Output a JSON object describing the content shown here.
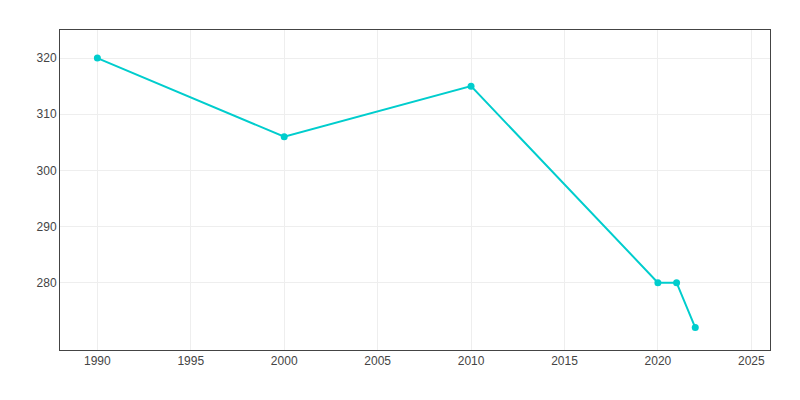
{
  "chart_data": {
    "type": "line",
    "x": [
      1990,
      2000,
      2010,
      2020,
      2021,
      2022
    ],
    "values": [
      320,
      306,
      315,
      280,
      280,
      272
    ],
    "color": "#00CDCD",
    "marker": "circle",
    "xlim": [
      1988,
      2026
    ],
    "ylim": [
      268,
      325
    ],
    "xticks": [
      1990,
      1995,
      2000,
      2005,
      2010,
      2015,
      2020,
      2025
    ],
    "yticks": [
      280,
      290,
      300,
      310,
      320
    ],
    "grid": true
  }
}
